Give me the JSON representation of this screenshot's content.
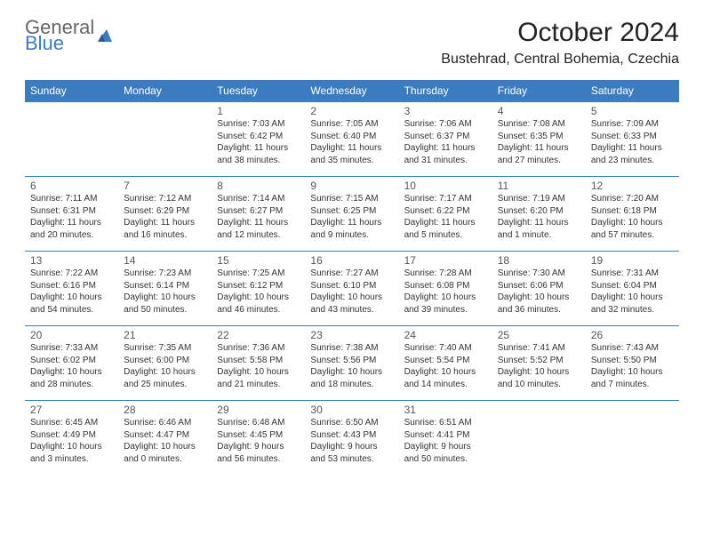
{
  "logo": {
    "line1": "General",
    "line2": "Blue",
    "color_gray": "#666666",
    "color_blue": "#3b7bbf"
  },
  "title": "October 2024",
  "location": "Bustehrad, Central Bohemia, Czechia",
  "colors": {
    "header_bg": "#3b7bbf",
    "header_text": "#ffffff",
    "border": "#3b7bbf",
    "text": "#333333",
    "daynum": "#555555",
    "background": "#ffffff"
  },
  "day_headers": [
    "Sunday",
    "Monday",
    "Tuesday",
    "Wednesday",
    "Thursday",
    "Friday",
    "Saturday"
  ],
  "fonts": {
    "title_size": 30,
    "location_size": 16,
    "header_size": 12,
    "daynum_size": 12,
    "body_size": 10
  },
  "weeks": [
    [
      null,
      null,
      {
        "n": "1",
        "sr": "Sunrise: 7:03 AM",
        "ss": "Sunset: 6:42 PM",
        "dl": "Daylight: 11 hours and 38 minutes."
      },
      {
        "n": "2",
        "sr": "Sunrise: 7:05 AM",
        "ss": "Sunset: 6:40 PM",
        "dl": "Daylight: 11 hours and 35 minutes."
      },
      {
        "n": "3",
        "sr": "Sunrise: 7:06 AM",
        "ss": "Sunset: 6:37 PM",
        "dl": "Daylight: 11 hours and 31 minutes."
      },
      {
        "n": "4",
        "sr": "Sunrise: 7:08 AM",
        "ss": "Sunset: 6:35 PM",
        "dl": "Daylight: 11 hours and 27 minutes."
      },
      {
        "n": "5",
        "sr": "Sunrise: 7:09 AM",
        "ss": "Sunset: 6:33 PM",
        "dl": "Daylight: 11 hours and 23 minutes."
      }
    ],
    [
      {
        "n": "6",
        "sr": "Sunrise: 7:11 AM",
        "ss": "Sunset: 6:31 PM",
        "dl": "Daylight: 11 hours and 20 minutes."
      },
      {
        "n": "7",
        "sr": "Sunrise: 7:12 AM",
        "ss": "Sunset: 6:29 PM",
        "dl": "Daylight: 11 hours and 16 minutes."
      },
      {
        "n": "8",
        "sr": "Sunrise: 7:14 AM",
        "ss": "Sunset: 6:27 PM",
        "dl": "Daylight: 11 hours and 12 minutes."
      },
      {
        "n": "9",
        "sr": "Sunrise: 7:15 AM",
        "ss": "Sunset: 6:25 PM",
        "dl": "Daylight: 11 hours and 9 minutes."
      },
      {
        "n": "10",
        "sr": "Sunrise: 7:17 AM",
        "ss": "Sunset: 6:22 PM",
        "dl": "Daylight: 11 hours and 5 minutes."
      },
      {
        "n": "11",
        "sr": "Sunrise: 7:19 AM",
        "ss": "Sunset: 6:20 PM",
        "dl": "Daylight: 11 hours and 1 minute."
      },
      {
        "n": "12",
        "sr": "Sunrise: 7:20 AM",
        "ss": "Sunset: 6:18 PM",
        "dl": "Daylight: 10 hours and 57 minutes."
      }
    ],
    [
      {
        "n": "13",
        "sr": "Sunrise: 7:22 AM",
        "ss": "Sunset: 6:16 PM",
        "dl": "Daylight: 10 hours and 54 minutes."
      },
      {
        "n": "14",
        "sr": "Sunrise: 7:23 AM",
        "ss": "Sunset: 6:14 PM",
        "dl": "Daylight: 10 hours and 50 minutes."
      },
      {
        "n": "15",
        "sr": "Sunrise: 7:25 AM",
        "ss": "Sunset: 6:12 PM",
        "dl": "Daylight: 10 hours and 46 minutes."
      },
      {
        "n": "16",
        "sr": "Sunrise: 7:27 AM",
        "ss": "Sunset: 6:10 PM",
        "dl": "Daylight: 10 hours and 43 minutes."
      },
      {
        "n": "17",
        "sr": "Sunrise: 7:28 AM",
        "ss": "Sunset: 6:08 PM",
        "dl": "Daylight: 10 hours and 39 minutes."
      },
      {
        "n": "18",
        "sr": "Sunrise: 7:30 AM",
        "ss": "Sunset: 6:06 PM",
        "dl": "Daylight: 10 hours and 36 minutes."
      },
      {
        "n": "19",
        "sr": "Sunrise: 7:31 AM",
        "ss": "Sunset: 6:04 PM",
        "dl": "Daylight: 10 hours and 32 minutes."
      }
    ],
    [
      {
        "n": "20",
        "sr": "Sunrise: 7:33 AM",
        "ss": "Sunset: 6:02 PM",
        "dl": "Daylight: 10 hours and 28 minutes."
      },
      {
        "n": "21",
        "sr": "Sunrise: 7:35 AM",
        "ss": "Sunset: 6:00 PM",
        "dl": "Daylight: 10 hours and 25 minutes."
      },
      {
        "n": "22",
        "sr": "Sunrise: 7:36 AM",
        "ss": "Sunset: 5:58 PM",
        "dl": "Daylight: 10 hours and 21 minutes."
      },
      {
        "n": "23",
        "sr": "Sunrise: 7:38 AM",
        "ss": "Sunset: 5:56 PM",
        "dl": "Daylight: 10 hours and 18 minutes."
      },
      {
        "n": "24",
        "sr": "Sunrise: 7:40 AM",
        "ss": "Sunset: 5:54 PM",
        "dl": "Daylight: 10 hours and 14 minutes."
      },
      {
        "n": "25",
        "sr": "Sunrise: 7:41 AM",
        "ss": "Sunset: 5:52 PM",
        "dl": "Daylight: 10 hours and 10 minutes."
      },
      {
        "n": "26",
        "sr": "Sunrise: 7:43 AM",
        "ss": "Sunset: 5:50 PM",
        "dl": "Daylight: 10 hours and 7 minutes."
      }
    ],
    [
      {
        "n": "27",
        "sr": "Sunrise: 6:45 AM",
        "ss": "Sunset: 4:49 PM",
        "dl": "Daylight: 10 hours and 3 minutes."
      },
      {
        "n": "28",
        "sr": "Sunrise: 6:46 AM",
        "ss": "Sunset: 4:47 PM",
        "dl": "Daylight: 10 hours and 0 minutes."
      },
      {
        "n": "29",
        "sr": "Sunrise: 6:48 AM",
        "ss": "Sunset: 4:45 PM",
        "dl": "Daylight: 9 hours and 56 minutes."
      },
      {
        "n": "30",
        "sr": "Sunrise: 6:50 AM",
        "ss": "Sunset: 4:43 PM",
        "dl": "Daylight: 9 hours and 53 minutes."
      },
      {
        "n": "31",
        "sr": "Sunrise: 6:51 AM",
        "ss": "Sunset: 4:41 PM",
        "dl": "Daylight: 9 hours and 50 minutes."
      },
      null,
      null
    ]
  ]
}
